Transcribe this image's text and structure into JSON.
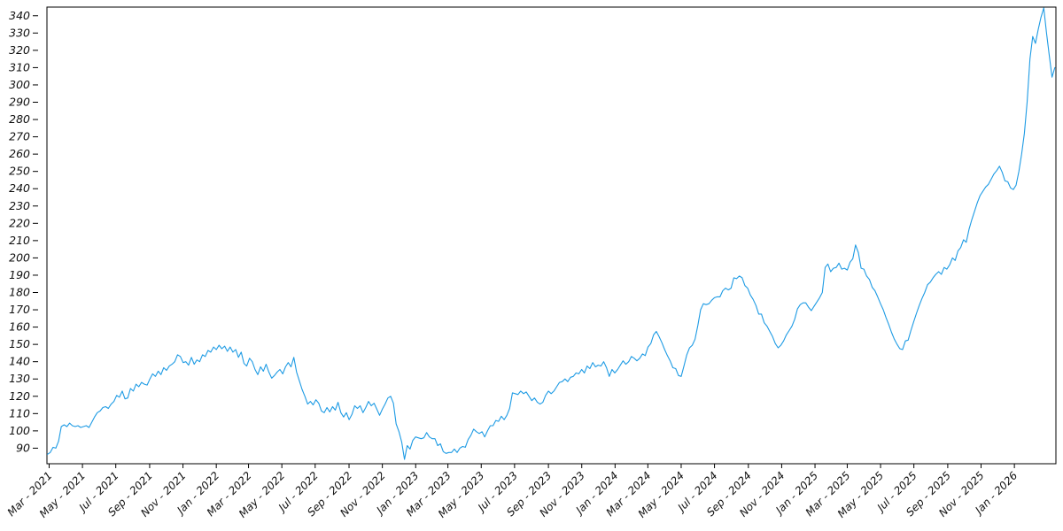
{
  "figure": {
    "background": "#ffffff",
    "frame_color": "#000000",
    "tick_color": "#000000",
    "label_color": "#111111"
  },
  "chart_data": {
    "type": "line",
    "title": "",
    "xlabel": "",
    "ylabel": "",
    "grid": false,
    "legend": "none",
    "xlim": [
      "2021-02-25",
      "2026-03-18"
    ],
    "ylim": [
      81,
      345
    ],
    "y_ticks": {
      "min": 90,
      "max": 340,
      "step": 10
    },
    "x_ticks": [
      {
        "label": "Mar - 2021",
        "date": "2021-03-01"
      },
      {
        "label": "May - 2021",
        "date": "2021-05-01"
      },
      {
        "label": "Jul - 2021",
        "date": "2021-07-01"
      },
      {
        "label": "Sep - 2021",
        "date": "2021-09-01"
      },
      {
        "label": "Nov - 2021",
        "date": "2021-11-01"
      },
      {
        "label": "Jan - 2022",
        "date": "2022-01-01"
      },
      {
        "label": "Mar - 2022",
        "date": "2022-03-01"
      },
      {
        "label": "May - 2022",
        "date": "2022-05-01"
      },
      {
        "label": "Jul - 2022",
        "date": "2022-07-01"
      },
      {
        "label": "Sep - 2022",
        "date": "2022-09-01"
      },
      {
        "label": "Nov - 2022",
        "date": "2022-11-01"
      },
      {
        "label": "Jan - 2023",
        "date": "2023-01-01"
      },
      {
        "label": "Mar - 2023",
        "date": "2023-03-01"
      },
      {
        "label": "May - 2023",
        "date": "2023-05-01"
      },
      {
        "label": "Jul - 2023",
        "date": "2023-07-01"
      },
      {
        "label": "Sep - 2023",
        "date": "2023-09-01"
      },
      {
        "label": "Nov - 2023",
        "date": "2023-11-01"
      },
      {
        "label": "Jan - 2024",
        "date": "2024-01-01"
      },
      {
        "label": "Mar - 2024",
        "date": "2024-03-01"
      },
      {
        "label": "May - 2024",
        "date": "2024-05-01"
      },
      {
        "label": "Jul - 2024",
        "date": "2024-07-01"
      },
      {
        "label": "Sep - 2024",
        "date": "2024-09-01"
      },
      {
        "label": "Nov - 2024",
        "date": "2024-11-01"
      },
      {
        "label": "Jan - 2025",
        "date": "2025-01-01"
      },
      {
        "label": "Mar - 2025",
        "date": "2025-03-01"
      },
      {
        "label": "May - 2025",
        "date": "2025-05-01"
      },
      {
        "label": "Jul - 2025",
        "date": "2025-07-01"
      },
      {
        "label": "Sep - 2025",
        "date": "2025-09-01"
      },
      {
        "label": "Nov - 2025",
        "date": "2025-11-01"
      },
      {
        "label": "Jan - 2026",
        "date": "2026-01-01"
      }
    ],
    "series": [
      {
        "name": "price",
        "color": "#1e9be4",
        "start_date": "2021-02-26",
        "end_date": "2026-03-16",
        "note": "365 samples evenly spaced in time between start_date and end_date (~5-day cadence)",
        "values": [
          86.5,
          87.5,
          90.5,
          90,
          94,
          102.5,
          103.5,
          102.5,
          104.5,
          103,
          102.5,
          103,
          102,
          102.5,
          103,
          102,
          105,
          108,
          110.5,
          111.5,
          113.5,
          114,
          113,
          115.5,
          117,
          120.5,
          119.5,
          123,
          118.5,
          119,
          124.5,
          123,
          127,
          125.5,
          128,
          127,
          126.5,
          130,
          133,
          131.5,
          134.5,
          132.5,
          136.5,
          135,
          137.5,
          138.5,
          140,
          144,
          143,
          139.5,
          140,
          138,
          142.5,
          138.5,
          141,
          140,
          144,
          143,
          146.5,
          145.5,
          148.5,
          147,
          149.5,
          147.5,
          149,
          146,
          148.5,
          145.5,
          147,
          142.5,
          145.5,
          139,
          137.5,
          142,
          140,
          135.5,
          132.5,
          137,
          134.5,
          138.5,
          134,
          130.5,
          132,
          134,
          135.5,
          133,
          137,
          139.5,
          137,
          142.5,
          134,
          129,
          124,
          120,
          115.5,
          117,
          115,
          118,
          116,
          111.5,
          110.5,
          113.5,
          111,
          114,
          112,
          116.5,
          110.5,
          108,
          110.5,
          106.5,
          109.5,
          114.5,
          113,
          114.5,
          110.5,
          113.5,
          117,
          114.5,
          116,
          112.5,
          109,
          112.5,
          115.5,
          119,
          120,
          116,
          104,
          99.5,
          93.5,
          83.5,
          91.5,
          89.5,
          94.5,
          96.5,
          96,
          95.5,
          96,
          99,
          96.5,
          95.5,
          95.5,
          91.5,
          92.5,
          88,
          87,
          87.5,
          87.5,
          89.5,
          87.5,
          90,
          91,
          90.5,
          95,
          97.5,
          101,
          99.5,
          98.5,
          99.5,
          96.5,
          100,
          103,
          103,
          106,
          105.5,
          108.5,
          106.5,
          109,
          113,
          122,
          121.5,
          121,
          123,
          121.5,
          122.5,
          120,
          117.5,
          119,
          116.5,
          115.5,
          116.5,
          120.5,
          123,
          121.5,
          123,
          125.5,
          128,
          128.5,
          130,
          128.5,
          131,
          131.5,
          133.5,
          133,
          135.5,
          133.5,
          137.5,
          136,
          139.5,
          137,
          138,
          137.5,
          140,
          136.5,
          131.5,
          135.5,
          133.5,
          135.5,
          138,
          140.5,
          138.5,
          140,
          143,
          142,
          140.5,
          142,
          144.5,
          143.5,
          148.5,
          150.5,
          155.5,
          157.5,
          154.5,
          151,
          147,
          143.5,
          140.5,
          136.5,
          136,
          132,
          131.5,
          137.5,
          144,
          148,
          149.5,
          153,
          161,
          170,
          173.5,
          173,
          173.5,
          175.5,
          177,
          177.5,
          177.5,
          181,
          182.5,
          181.5,
          182.5,
          188.5,
          188,
          189.5,
          188.5,
          184,
          182.5,
          178.5,
          176,
          172.5,
          167.5,
          167.5,
          162.5,
          160.5,
          157.5,
          154.5,
          150.5,
          148,
          149.5,
          152,
          155.5,
          158,
          160.5,
          164.5,
          170.5,
          173,
          174,
          174,
          171.5,
          169.5,
          172,
          174.5,
          177,
          180,
          194.5,
          196.5,
          192,
          194,
          194.5,
          197,
          193.5,
          194,
          193,
          197.5,
          199.5,
          207.5,
          203,
          194,
          193.5,
          189.5,
          187.5,
          183,
          181,
          177.5,
          173.5,
          170,
          165.5,
          161.5,
          157,
          153,
          150,
          147.5,
          147,
          152,
          152.5,
          158,
          163,
          168,
          172.5,
          176.5,
          180,
          184.5,
          186,
          188.5,
          190.5,
          192,
          190.5,
          194.5,
          193.5,
          196,
          200,
          198.5,
          204,
          206,
          210.5,
          209,
          216.5,
          222,
          227,
          232,
          236,
          238.5,
          241,
          242.5,
          245.5,
          248.5,
          250.5,
          253,
          249.5,
          244.5,
          244,
          240.5,
          239.5,
          242,
          250,
          260,
          272,
          290,
          315,
          328,
          324,
          332,
          339,
          344.5,
          330,
          317,
          304.5,
          310
        ]
      }
    ]
  }
}
